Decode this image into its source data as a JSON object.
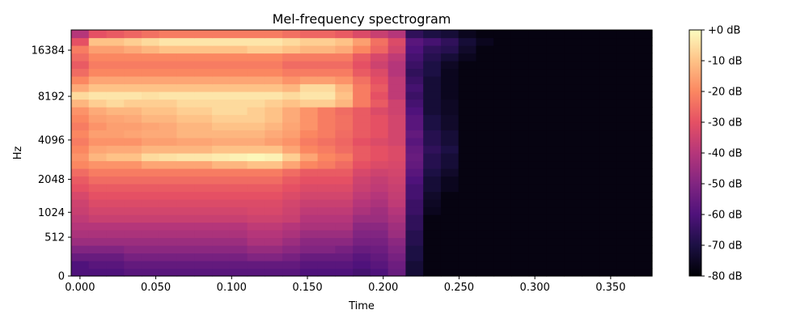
{
  "chart_data": {
    "type": "heatmap",
    "title": "Mel-frequency spectrogram",
    "xlabel": "Time",
    "ylabel": "Hz",
    "x_ticks": [
      "0.000",
      "0.050",
      "0.100",
      "0.150",
      "0.200",
      "0.250",
      "0.300",
      "0.350"
    ],
    "x_tick_values": [
      0.0,
      0.05,
      0.1,
      0.15,
      0.2,
      0.25,
      0.3,
      0.35
    ],
    "xlim": [
      -0.0058,
      0.3773
    ],
    "y_scale": "mel",
    "y_ticks": [
      "0",
      "512",
      "1024",
      "2048",
      "4096",
      "8192",
      "16384"
    ],
    "y_tick_values": [
      0,
      512,
      1024,
      2048,
      4096,
      8192,
      16384
    ],
    "ylim": [
      0,
      22050
    ],
    "colormap": "magma",
    "colorbar": {
      "ticks": [
        "+0 dB",
        "-10 dB",
        "-20 dB",
        "-30 dB",
        "-40 dB",
        "-50 dB",
        "-60 dB",
        "-70 dB",
        "-80 dB"
      ],
      "tick_values": [
        0,
        -10,
        -20,
        -30,
        -40,
        -50,
        -60,
        -70,
        -80
      ],
      "range": [
        -80,
        0
      ],
      "placement": "right"
    },
    "grid": false,
    "frames": 33,
    "bins": 32,
    "levels_db": [
      [
        -60,
        -60,
        -60,
        -58,
        -58,
        -58,
        -58,
        -58,
        -58,
        -58,
        -58,
        -58,
        -58,
        -60,
        -60,
        -60,
        -62,
        -60,
        -55,
        -72,
        -78,
        -78,
        -78,
        -78,
        -78,
        -78,
        -78,
        -78,
        -78,
        -78,
        -78,
        -78,
        -78
      ],
      [
        -60,
        -58,
        -58,
        -56,
        -56,
        -56,
        -56,
        -56,
        -56,
        -56,
        -56,
        -56,
        -56,
        -58,
        -58,
        -58,
        -60,
        -58,
        -54,
        -72,
        -78,
        -78,
        -78,
        -78,
        -78,
        -78,
        -78,
        -78,
        -78,
        -78,
        -78,
        -78,
        -78
      ],
      [
        -55,
        -55,
        -55,
        -52,
        -52,
        -52,
        -52,
        -52,
        -52,
        -52,
        -50,
        -50,
        -52,
        -55,
        -55,
        -55,
        -58,
        -56,
        -52,
        -70,
        -78,
        -78,
        -78,
        -78,
        -78,
        -78,
        -78,
        -78,
        -78,
        -78,
        -78,
        -78,
        -78
      ],
      [
        -50,
        -50,
        -50,
        -48,
        -48,
        -48,
        -48,
        -48,
        -48,
        -48,
        -46,
        -46,
        -48,
        -50,
        -50,
        -52,
        -55,
        -54,
        -50,
        -70,
        -78,
        -78,
        -78,
        -78,
        -78,
        -78,
        -78,
        -78,
        -78,
        -78,
        -78,
        -78,
        -78
      ],
      [
        -45,
        -45,
        -45,
        -45,
        -45,
        -45,
        -45,
        -45,
        -45,
        -45,
        -42,
        -42,
        -45,
        -48,
        -48,
        -48,
        -52,
        -52,
        -48,
        -68,
        -78,
        -78,
        -78,
        -78,
        -78,
        -78,
        -78,
        -78,
        -78,
        -78,
        -78,
        -78,
        -78
      ],
      [
        -42,
        -42,
        -42,
        -42,
        -42,
        -42,
        -42,
        -42,
        -42,
        -42,
        -40,
        -40,
        -42,
        -45,
        -45,
        -45,
        -50,
        -50,
        -45,
        -68,
        -78,
        -78,
        -78,
        -78,
        -78,
        -78,
        -78,
        -78,
        -78,
        -78,
        -78,
        -78,
        -78
      ],
      [
        -40,
        -40,
        -40,
        -40,
        -40,
        -40,
        -40,
        -40,
        -40,
        -40,
        -38,
        -38,
        -40,
        -42,
        -42,
        -42,
        -48,
        -48,
        -44,
        -66,
        -78,
        -78,
        -78,
        -78,
        -78,
        -78,
        -78,
        -78,
        -78,
        -78,
        -78,
        -78,
        -78
      ],
      [
        -38,
        -36,
        -36,
        -36,
        -36,
        -36,
        -36,
        -36,
        -36,
        -36,
        -35,
        -35,
        -36,
        -40,
        -40,
        -40,
        -45,
        -45,
        -42,
        -66,
        -78,
        -78,
        -78,
        -78,
        -78,
        -78,
        -78,
        -78,
        -78,
        -78,
        -78,
        -78,
        -78
      ],
      [
        -36,
        -34,
        -34,
        -34,
        -34,
        -34,
        -34,
        -34,
        -34,
        -34,
        -33,
        -33,
        -35,
        -38,
        -38,
        -38,
        -42,
        -44,
        -40,
        -64,
        -76,
        -78,
        -78,
        -78,
        -78,
        -78,
        -78,
        -78,
        -78,
        -78,
        -78,
        -78,
        -78
      ],
      [
        -35,
        -32,
        -32,
        -32,
        -32,
        -32,
        -32,
        -32,
        -32,
        -32,
        -32,
        -32,
        -34,
        -36,
        -36,
        -36,
        -40,
        -42,
        -38,
        -64,
        -75,
        -78,
        -78,
        -78,
        -78,
        -78,
        -78,
        -78,
        -78,
        -78,
        -78,
        -78,
        -78
      ],
      [
        -33,
        -30,
        -30,
        -30,
        -30,
        -30,
        -30,
        -30,
        -30,
        -30,
        -30,
        -30,
        -32,
        -34,
        -34,
        -34,
        -38,
        -40,
        -37,
        -62,
        -74,
        -78,
        -78,
        -78,
        -78,
        -78,
        -78,
        -78,
        -78,
        -78,
        -78,
        -78,
        -78
      ],
      [
        -30,
        -28,
        -28,
        -28,
        -28,
        -28,
        -28,
        -28,
        -28,
        -28,
        -28,
        -28,
        -30,
        -32,
        -32,
        -32,
        -36,
        -38,
        -36,
        -62,
        -72,
        -76,
        -78,
        -78,
        -78,
        -78,
        -78,
        -78,
        -78,
        -78,
        -78,
        -78,
        -78
      ],
      [
        -28,
        -25,
        -25,
        -25,
        -25,
        -25,
        -25,
        -25,
        -25,
        -25,
        -25,
        -25,
        -28,
        -30,
        -30,
        -30,
        -35,
        -37,
        -35,
        -60,
        -72,
        -76,
        -78,
        -78,
        -78,
        -78,
        -78,
        -78,
        -78,
        -78,
        -78,
        -78,
        -78
      ],
      [
        -25,
        -22,
        -22,
        -22,
        -22,
        -22,
        -22,
        -22,
        -22,
        -22,
        -22,
        -22,
        -25,
        -28,
        -28,
        -28,
        -33,
        -35,
        -34,
        -58,
        -70,
        -74,
        -78,
        -78,
        -78,
        -78,
        -78,
        -78,
        -78,
        -78,
        -78,
        -78,
        -78
      ],
      [
        -20,
        -18,
        -18,
        -18,
        -15,
        -15,
        -15,
        -15,
        -12,
        -12,
        -10,
        -10,
        -15,
        -20,
        -22,
        -25,
        -30,
        -32,
        -33,
        -56,
        -68,
        -72,
        -78,
        -78,
        -78,
        -78,
        -78,
        -78,
        -78,
        -78,
        -78,
        -78,
        -78
      ],
      [
        -18,
        -12,
        -10,
        -10,
        -6,
        -5,
        -4,
        -4,
        -3,
        -2,
        -1,
        -2,
        -8,
        -15,
        -20,
        -22,
        -28,
        -30,
        -32,
        -55,
        -68,
        -72,
        -78,
        -78,
        -78,
        -78,
        -78,
        -78,
        -78,
        -78,
        -78,
        -78,
        -78
      ],
      [
        -20,
        -15,
        -14,
        -14,
        -12,
        -12,
        -12,
        -12,
        -10,
        -10,
        -10,
        -10,
        -15,
        -20,
        -22,
        -25,
        -28,
        -30,
        -32,
        -56,
        -66,
        -70,
        -78,
        -78,
        -78,
        -78,
        -78,
        -78,
        -78,
        -78,
        -78,
        -78,
        -78
      ],
      [
        -22,
        -18,
        -18,
        -18,
        -16,
        -16,
        -15,
        -15,
        -14,
        -14,
        -14,
        -16,
        -18,
        -22,
        -24,
        -26,
        -30,
        -32,
        -34,
        -58,
        -68,
        -72,
        -78,
        -78,
        -78,
        -78,
        -78,
        -78,
        -78,
        -78,
        -78,
        -78,
        -78
      ],
      [
        -20,
        -16,
        -16,
        -15,
        -14,
        -14,
        -12,
        -12,
        -12,
        -12,
        -12,
        -14,
        -16,
        -20,
        -22,
        -25,
        -28,
        -30,
        -34,
        -56,
        -68,
        -72,
        -78,
        -78,
        -78,
        -78,
        -78,
        -78,
        -78,
        -78,
        -78,
        -78,
        -78
      ],
      [
        -22,
        -18,
        -16,
        -16,
        -15,
        -14,
        -12,
        -12,
        -10,
        -10,
        -10,
        -12,
        -15,
        -18,
        -22,
        -24,
        -28,
        -30,
        -34,
        -58,
        -70,
        -74,
        -78,
        -78,
        -78,
        -78,
        -78,
        -78,
        -78,
        -78,
        -78,
        -78,
        -78
      ],
      [
        -20,
        -16,
        -15,
        -14,
        -12,
        -12,
        -10,
        -10,
        -8,
        -8,
        -8,
        -10,
        -14,
        -18,
        -22,
        -24,
        -28,
        -30,
        -34,
        -58,
        -70,
        -74,
        -78,
        -78,
        -78,
        -78,
        -78,
        -78,
        -78,
        -78,
        -78,
        -78,
        -78
      ],
      [
        -18,
        -14,
        -12,
        -12,
        -10,
        -10,
        -8,
        -8,
        -6,
        -6,
        -8,
        -10,
        -14,
        -18,
        -22,
        -25,
        -28,
        -32,
        -35,
        -60,
        -72,
        -75,
        -78,
        -78,
        -78,
        -78,
        -78,
        -78,
        -78,
        -78,
        -78,
        -78,
        -78
      ],
      [
        -12,
        -8,
        -6,
        -8,
        -8,
        -8,
        -6,
        -6,
        -6,
        -6,
        -6,
        -8,
        -10,
        -8,
        -8,
        -12,
        -22,
        -28,
        -35,
        -62,
        -72,
        -75,
        -78,
        -78,
        -78,
        -78,
        -78,
        -78,
        -78,
        -78,
        -78,
        -78,
        -78
      ],
      [
        -6,
        -4,
        -4,
        -4,
        -5,
        -4,
        -4,
        -4,
        -4,
        -4,
        -4,
        -4,
        -6,
        -4,
        -4,
        -10,
        -22,
        -30,
        -38,
        -64,
        -72,
        -76,
        -78,
        -78,
        -78,
        -78,
        -78,
        -78,
        -78,
        -78,
        -78,
        -78,
        -78
      ],
      [
        -14,
        -10,
        -10,
        -10,
        -10,
        -10,
        -10,
        -10,
        -10,
        -10,
        -10,
        -10,
        -12,
        -6,
        -6,
        -12,
        -22,
        -28,
        -38,
        -62,
        -72,
        -76,
        -78,
        -78,
        -78,
        -78,
        -78,
        -78,
        -78,
        -78,
        -78,
        -78,
        -78
      ],
      [
        -20,
        -15,
        -15,
        -15,
        -15,
        -15,
        -15,
        -15,
        -15,
        -15,
        -15,
        -15,
        -18,
        -16,
        -16,
        -18,
        -24,
        -30,
        -38,
        -64,
        -72,
        -76,
        -78,
        -78,
        -78,
        -78,
        -78,
        -78,
        -78,
        -78,
        -78,
        -78,
        -78
      ],
      [
        -25,
        -20,
        -20,
        -20,
        -20,
        -20,
        -20,
        -20,
        -20,
        -20,
        -20,
        -20,
        -22,
        -22,
        -22,
        -22,
        -28,
        -32,
        -40,
        -66,
        -70,
        -76,
        -78,
        -78,
        -78,
        -78,
        -78,
        -78,
        -78,
        -78,
        -78,
        -78,
        -78
      ],
      [
        -28,
        -22,
        -22,
        -22,
        -22,
        -22,
        -22,
        -22,
        -22,
        -22,
        -22,
        -22,
        -25,
        -25,
        -25,
        -25,
        -30,
        -35,
        -40,
        -64,
        -70,
        -75,
        -78,
        -78,
        -78,
        -78,
        -78,
        -78,
        -78,
        -78,
        -78,
        -78,
        -78
      ],
      [
        -25,
        -20,
        -20,
        -20,
        -20,
        -20,
        -20,
        -20,
        -20,
        -20,
        -20,
        -20,
        -22,
        -22,
        -22,
        -22,
        -28,
        -33,
        -38,
        -62,
        -68,
        -72,
        -76,
        -78,
        -78,
        -78,
        -78,
        -78,
        -78,
        -78,
        -78,
        -78,
        -78
      ],
      [
        -22,
        -16,
        -16,
        -14,
        -12,
        -10,
        -10,
        -10,
        -10,
        -10,
        -8,
        -8,
        -10,
        -12,
        -12,
        -14,
        -20,
        -26,
        -34,
        -60,
        -66,
        -68,
        -74,
        -78,
        -78,
        -78,
        -78,
        -78,
        -78,
        -78,
        -78,
        -78,
        -78
      ],
      [
        -30,
        -10,
        -10,
        -8,
        -6,
        -4,
        -4,
        -4,
        -4,
        -4,
        -4,
        -4,
        -6,
        -8,
        -8,
        -10,
        -16,
        -24,
        -32,
        -58,
        -62,
        -66,
        -72,
        -76,
        -78,
        -78,
        -78,
        -78,
        -78,
        -78,
        -78,
        -78,
        -78
      ],
      [
        -40,
        -30,
        -28,
        -26,
        -24,
        -22,
        -22,
        -22,
        -22,
        -22,
        -22,
        -22,
        -24,
        -26,
        -26,
        -28,
        -32,
        -36,
        -40,
        -66,
        -70,
        -72,
        -76,
        -78,
        -78,
        -78,
        -78,
        -78,
        -78,
        -78,
        -78,
        -78,
        -78
      ]
    ]
  }
}
